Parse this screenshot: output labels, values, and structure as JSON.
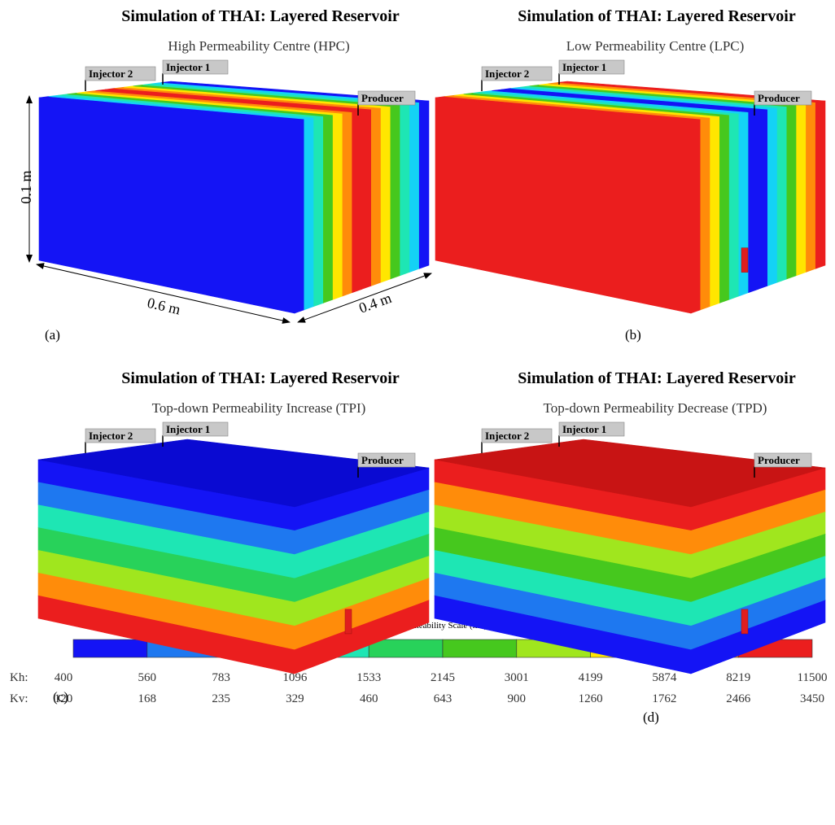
{
  "panels": [
    {
      "title": "Simulation of THAI: Layered Reservoir",
      "subtitle": "High Permeability Centre (HPC)",
      "wells": [
        "Injector 2",
        "Injector 1",
        "Producer"
      ],
      "label": "(a)"
    },
    {
      "title": "Simulation of THAI: Layered Reservoir",
      "subtitle": "Low Permeability Centre (LPC)",
      "wells": [
        "Injector 2",
        "Injector 1",
        "Producer"
      ],
      "label": "(b)"
    },
    {
      "title": "Simulation of THAI: Layered Reservoir",
      "subtitle": "Top-down Permeability Increase (TPI)",
      "wells": [
        "Injector 2",
        "Injector 1",
        "Producer"
      ],
      "label": "(c)"
    },
    {
      "title": "Simulation of THAI: Layered Reservoir",
      "subtitle": "Top-down Permeability Decrease (TPD)",
      "wells": [
        "Injector 2",
        "Injector 1",
        "Producer"
      ],
      "label": "(d)"
    }
  ],
  "dimensions": {
    "height": "0.1 m",
    "length": "0.6 m",
    "width": "0.4 m"
  },
  "scale": {
    "title": "Permeability Scale (md)",
    "colors": [
      "#1414f5",
      "#1e78f0",
      "#14d2f5",
      "#1ee6b4",
      "#28d25a",
      "#46c81e",
      "#a0e61e",
      "#ffe600",
      "#ff8c0a",
      "#eb1e1e"
    ],
    "kh_label": "Kh:",
    "kv_label": "Kv:",
    "kh": [
      400,
      560,
      783,
      1096,
      1533,
      2145,
      3001,
      4199,
      5874,
      8219,
      11500
    ],
    "kv": [
      120,
      168,
      235,
      329,
      460,
      643,
      900,
      1260,
      1762,
      2466,
      3450
    ]
  }
}
